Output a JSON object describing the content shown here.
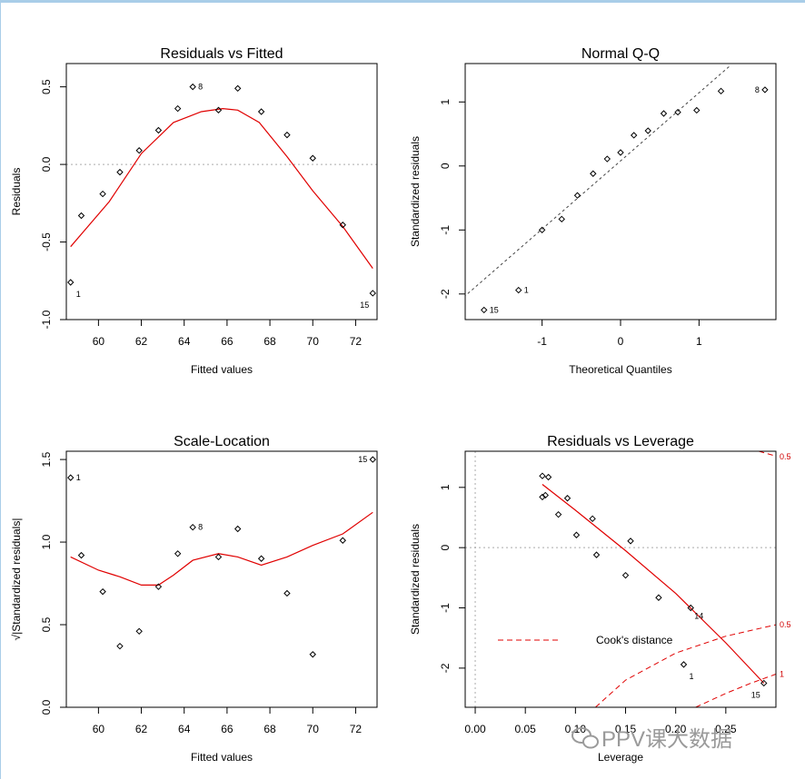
{
  "watermark": "PPV课大数据",
  "chart_data": [
    {
      "id": "rvf",
      "type": "scatter",
      "title": "Residuals vs Fitted",
      "xlabel": "Fitted values",
      "ylabel": "Residuals",
      "xlim": [
        58.5,
        73
      ],
      "ylim": [
        -1.0,
        0.65
      ],
      "xticks": [
        60,
        62,
        64,
        66,
        68,
        70,
        72
      ],
      "yticks": [
        -1.0,
        -0.5,
        0.0,
        0.5
      ],
      "ytick_labels": [
        "-1.0",
        "-0.5",
        "0.0",
        "0.5"
      ],
      "hline": 0,
      "x": [
        58.7,
        59.2,
        60.2,
        61.0,
        61.9,
        62.8,
        63.7,
        64.4,
        65.6,
        66.5,
        67.6,
        68.8,
        70.0,
        71.4,
        72.8
      ],
      "y": [
        -0.76,
        -0.33,
        -0.19,
        -0.05,
        0.09,
        0.22,
        0.36,
        0.5,
        0.35,
        0.49,
        0.34,
        0.19,
        0.04,
        -0.39,
        -0.83
      ],
      "smooth": [
        [
          58.7,
          -0.53
        ],
        [
          60.5,
          -0.24
        ],
        [
          62.0,
          0.07
        ],
        [
          63.5,
          0.27
        ],
        [
          64.8,
          0.34
        ],
        [
          65.8,
          0.36
        ],
        [
          66.5,
          0.35
        ],
        [
          67.5,
          0.27
        ],
        [
          68.8,
          0.05
        ],
        [
          70.0,
          -0.17
        ],
        [
          71.4,
          -0.4
        ],
        [
          72.8,
          -0.67
        ]
      ],
      "point_labels": [
        {
          "text": "1",
          "x": 58.7,
          "y": -0.76,
          "pos": "below"
        },
        {
          "text": "8",
          "x": 64.4,
          "y": 0.5,
          "pos": "right"
        },
        {
          "text": "15",
          "x": 72.8,
          "y": -0.83,
          "pos": "below-left"
        }
      ]
    },
    {
      "id": "qq",
      "type": "scatter",
      "title": "Normal Q-Q",
      "xlabel": "Theoretical Quantiles",
      "ylabel": "Standardized residuals",
      "xlim": [
        -1.98,
        1.98
      ],
      "ylim": [
        -2.4,
        1.6
      ],
      "xticks": [
        -1,
        0,
        1
      ],
      "yticks": [
        -2,
        -1,
        0,
        1
      ],
      "ytick_labels": [
        "-2",
        "-1",
        "0",
        "1"
      ],
      "refline": [
        [
          -2.0,
          -2.05
        ],
        [
          1.4,
          1.57
        ]
      ],
      "x": [
        -1.74,
        -1.3,
        -1.0,
        -0.75,
        -0.55,
        -0.35,
        -0.17,
        0.0,
        0.17,
        0.35,
        0.55,
        0.73,
        0.97,
        1.28,
        1.84
      ],
      "y": [
        -2.25,
        -1.94,
        -1.0,
        -0.83,
        -0.46,
        -0.12,
        0.11,
        0.21,
        0.48,
        0.55,
        0.82,
        0.84,
        0.87,
        1.17,
        1.19
      ],
      "point_labels": [
        {
          "text": "15",
          "x": -1.74,
          "y": -2.25,
          "pos": "right"
        },
        {
          "text": "1",
          "x": -1.3,
          "y": -1.94,
          "pos": "right"
        },
        {
          "text": "8",
          "x": 1.84,
          "y": 1.19,
          "pos": "left"
        }
      ]
    },
    {
      "id": "sl",
      "type": "scatter",
      "title": "Scale-Location",
      "xlabel": "Fitted values",
      "ylabel": "√|Standardized residuals|",
      "xlim": [
        58.5,
        73
      ],
      "ylim": [
        0.0,
        1.55
      ],
      "xticks": [
        60,
        62,
        64,
        66,
        68,
        70,
        72
      ],
      "yticks": [
        0.0,
        0.5,
        1.0,
        1.5
      ],
      "ytick_labels": [
        "0.0",
        "0.5",
        "1.0",
        "1.5"
      ],
      "x": [
        58.7,
        59.2,
        60.2,
        61.0,
        61.9,
        62.8,
        63.7,
        64.4,
        65.6,
        66.5,
        67.6,
        68.8,
        70.0,
        71.4,
        72.8
      ],
      "y": [
        1.39,
        0.92,
        0.7,
        0.37,
        0.46,
        0.73,
        0.93,
        1.09,
        0.91,
        1.08,
        0.9,
        0.69,
        0.32,
        1.01,
        1.5
      ],
      "smooth": [
        [
          58.7,
          0.91
        ],
        [
          60.0,
          0.83
        ],
        [
          61.0,
          0.79
        ],
        [
          62.0,
          0.74
        ],
        [
          62.8,
          0.74
        ],
        [
          63.5,
          0.8
        ],
        [
          64.4,
          0.89
        ],
        [
          65.6,
          0.93
        ],
        [
          66.5,
          0.91
        ],
        [
          67.6,
          0.86
        ],
        [
          68.8,
          0.91
        ],
        [
          70.0,
          0.98
        ],
        [
          71.4,
          1.05
        ],
        [
          72.8,
          1.18
        ]
      ],
      "point_labels": [
        {
          "text": "1",
          "x": 58.7,
          "y": 1.39,
          "pos": "right"
        },
        {
          "text": "8",
          "x": 64.4,
          "y": 1.09,
          "pos": "right"
        },
        {
          "text": "15",
          "x": 72.8,
          "y": 1.5,
          "pos": "left"
        }
      ]
    },
    {
      "id": "rvl",
      "type": "scatter",
      "title": "Residuals vs Leverage",
      "xlabel": "Leverage",
      "ylabel": "Standardized residuals",
      "xlim": [
        -0.01,
        0.3
      ],
      "ylim": [
        -2.65,
        1.6
      ],
      "xticks": [
        0.0,
        0.05,
        0.1,
        0.15,
        0.2,
        0.25
      ],
      "xtick_labels": [
        "0.00",
        "0.05",
        "0.10",
        "0.15",
        "0.20",
        "0.25"
      ],
      "yticks": [
        -2,
        -1,
        0,
        1
      ],
      "ytick_labels": [
        "-2",
        "-1",
        "0",
        "1"
      ],
      "hline": 0,
      "vline": 0,
      "x": [
        0.067,
        0.067,
        0.07,
        0.073,
        0.083,
        0.092,
        0.101,
        0.117,
        0.121,
        0.15,
        0.155,
        0.183,
        0.208,
        0.215,
        0.288
      ],
      "y": [
        1.19,
        0.84,
        0.87,
        1.17,
        0.55,
        0.82,
        0.21,
        0.48,
        -0.12,
        -0.46,
        0.11,
        -0.83,
        -1.94,
        -1.0,
        -2.25
      ],
      "smooth": [
        [
          0.067,
          1.05
        ],
        [
          0.1,
          0.62
        ],
        [
          0.15,
          -0.05
        ],
        [
          0.2,
          -0.76
        ],
        [
          0.25,
          -1.58
        ],
        [
          0.288,
          -2.25
        ]
      ],
      "cooks_curves": [
        {
          "label": "0.5",
          "points": [
            [
              0.12,
              -2.65
            ],
            [
              0.15,
              -2.2
            ],
            [
              0.2,
              -1.75
            ],
            [
              0.25,
              -1.47
            ],
            [
              0.3,
              -1.28
            ]
          ]
        },
        {
          "label": "1",
          "points": [
            [
              0.22,
              -2.65
            ],
            [
              0.25,
              -2.42
            ],
            [
              0.275,
              -2.25
            ],
            [
              0.3,
              -2.1
            ]
          ]
        },
        {
          "label": "0.5",
          "points": [
            [
              0.283,
              1.6
            ],
            [
              0.3,
              1.52
            ]
          ]
        }
      ],
      "point_labels": [
        {
          "text": "14",
          "x": 0.215,
          "y": -1.0,
          "pos": "below-right"
        },
        {
          "text": "1",
          "x": 0.208,
          "y": -1.94,
          "pos": "below"
        },
        {
          "text": "15",
          "x": 0.288,
          "y": -2.25,
          "pos": "below-left"
        }
      ],
      "legend": {
        "label": "Cook's distance",
        "position": "bottom-left"
      }
    }
  ]
}
